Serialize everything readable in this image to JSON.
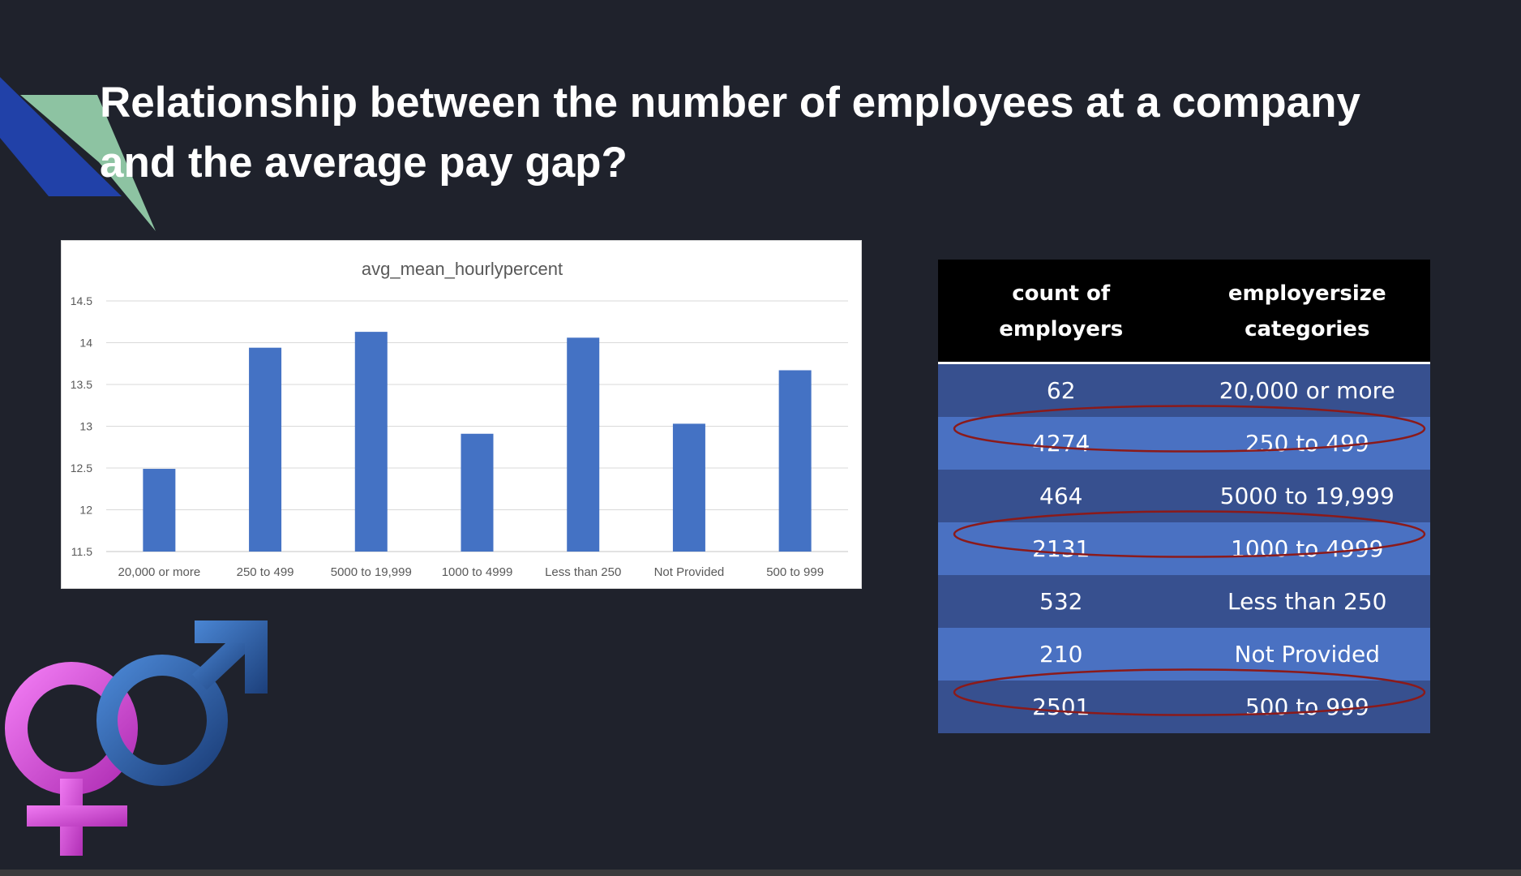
{
  "slide": {
    "title": "Relationship between the number of employees at a company and the average pay gap?"
  },
  "chart_data": {
    "type": "bar",
    "title": "avg_mean_hourlypercent",
    "xlabel": "",
    "ylabel": "",
    "categories": [
      "20,000 or more",
      "250 to 499",
      "5000 to 19,999",
      "1000 to 4999",
      "Less than 250",
      "Not Provided",
      "500 to 999"
    ],
    "values": [
      12.49,
      13.94,
      14.13,
      12.91,
      14.06,
      13.03,
      13.67
    ],
    "ylim": [
      11.5,
      14.5
    ],
    "yticks": [
      "11.5",
      "12",
      "12.5",
      "13",
      "13.5",
      "14",
      "14.5"
    ],
    "grid": true,
    "bar_color": "#4472c4"
  },
  "table": {
    "headers": [
      "count of employers",
      "employersize categories"
    ],
    "rows": [
      [
        "62",
        "20,000 or more"
      ],
      [
        "4274",
        "250 to 499"
      ],
      [
        "464",
        "5000 to 19,999"
      ],
      [
        "2131",
        "1000 to 4999"
      ],
      [
        "532",
        "Less than 250"
      ],
      [
        "210",
        "Not Provided"
      ],
      [
        "2501",
        "500 to 999"
      ]
    ],
    "highlighted_rows": [
      1,
      3,
      6
    ],
    "highlight_color": "#8b1a1a"
  },
  "colors": {
    "background": "#1f222c",
    "accent_blue": "#2141a8",
    "accent_green": "#8dc3a2",
    "female_symbol": "#d64ad8",
    "male_symbol": "#2c5fa8"
  },
  "decor": {
    "icons": [
      "accent-shape",
      "gender-symbol-icon"
    ]
  }
}
